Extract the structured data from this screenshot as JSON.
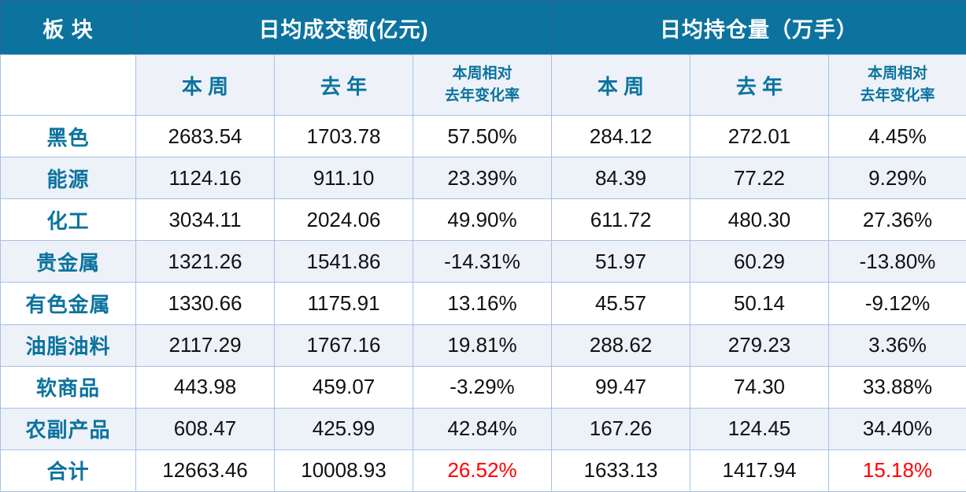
{
  "table": {
    "corner_label": "板 块",
    "groups": [
      {
        "label": "日均成交额(亿元)"
      },
      {
        "label": "日均持仓量（万手）"
      }
    ],
    "sub_headers": {
      "this_week": "本 周",
      "last_year": "去 年",
      "change_line1": "本周相对",
      "change_line2": "去年变化率"
    },
    "column_keys": [
      "turnover-this-week",
      "turnover-last-year",
      "turnover-change",
      "oi-this-week",
      "oi-last-year",
      "oi-change"
    ],
    "rows": [
      {
        "sector": "黑色",
        "values": [
          "2683.54",
          "1703.78",
          "57.50%",
          "284.12",
          "272.01",
          "4.45%"
        ],
        "is_total": false
      },
      {
        "sector": "能源",
        "values": [
          "1124.16",
          "911.10",
          "23.39%",
          "84.39",
          "77.22",
          "9.29%"
        ],
        "is_total": false
      },
      {
        "sector": "化工",
        "values": [
          "3034.11",
          "2024.06",
          "49.90%",
          "611.72",
          "480.30",
          "27.36%"
        ],
        "is_total": false
      },
      {
        "sector": "贵金属",
        "values": [
          "1321.26",
          "1541.86",
          "-14.31%",
          "51.97",
          "60.29",
          "-13.80%"
        ],
        "is_total": false
      },
      {
        "sector": "有色金属",
        "values": [
          "1330.66",
          "1175.91",
          "13.16%",
          "45.57",
          "50.14",
          "-9.12%"
        ],
        "is_total": false
      },
      {
        "sector": "油脂油料",
        "values": [
          "2117.29",
          "1767.16",
          "19.81%",
          "288.62",
          "279.23",
          "3.36%"
        ],
        "is_total": false
      },
      {
        "sector": "软商品",
        "values": [
          "443.98",
          "459.07",
          "-3.29%",
          "99.47",
          "74.30",
          "33.88%"
        ],
        "is_total": false
      },
      {
        "sector": "农副产品",
        "values": [
          "608.47",
          "425.99",
          "42.84%",
          "167.26",
          "124.45",
          "34.40%"
        ],
        "is_total": false
      },
      {
        "sector": "合计",
        "values": [
          "12663.46",
          "10008.93",
          "26.52%",
          "1633.13",
          "1417.94",
          "15.18%"
        ],
        "is_total": true
      }
    ]
  },
  "colors": {
    "header_bg": "#0b739e",
    "header_text": "#ffffff",
    "header_divider": "#2f618e",
    "subheader_bg": "#eef2f8",
    "accent_text": "#0b739e",
    "alt_row_bg": "#edf1f8",
    "row_bg": "#ffffff",
    "border": "#a6c1e4",
    "value_text": "#111111",
    "total_change_red": "#ff0000"
  },
  "chart_data": {
    "type": "table",
    "title": "",
    "column_groups": [
      "日均成交额(亿元)",
      "日均持仓量（万手）"
    ],
    "columns": [
      "板块",
      "日均成交额(亿元) 本周",
      "日均成交额(亿元) 去年",
      "日均成交额(亿元) 本周相对去年变化率",
      "日均持仓量（万手） 本周",
      "日均持仓量（万手） 去年",
      "日均持仓量（万手） 本周相对去年变化率"
    ],
    "rows": [
      [
        "黑色",
        2683.54,
        1703.78,
        "57.50%",
        284.12,
        272.01,
        "4.45%"
      ],
      [
        "能源",
        1124.16,
        911.1,
        "23.39%",
        84.39,
        77.22,
        "9.29%"
      ],
      [
        "化工",
        3034.11,
        2024.06,
        "49.90%",
        611.72,
        480.3,
        "27.36%"
      ],
      [
        "贵金属",
        1321.26,
        1541.86,
        "-14.31%",
        51.97,
        60.29,
        "-13.80%"
      ],
      [
        "有色金属",
        1330.66,
        1175.91,
        "13.16%",
        45.57,
        50.14,
        "-9.12%"
      ],
      [
        "油脂油料",
        2117.29,
        1767.16,
        "19.81%",
        288.62,
        279.23,
        "3.36%"
      ],
      [
        "软商品",
        443.98,
        459.07,
        "-3.29%",
        99.47,
        74.3,
        "33.88%"
      ],
      [
        "农副产品",
        608.47,
        425.99,
        "42.84%",
        167.26,
        124.45,
        "34.40%"
      ],
      [
        "合计",
        12663.46,
        10008.93,
        "26.52%",
        1633.13,
        1417.94,
        "15.18%"
      ]
    ]
  }
}
